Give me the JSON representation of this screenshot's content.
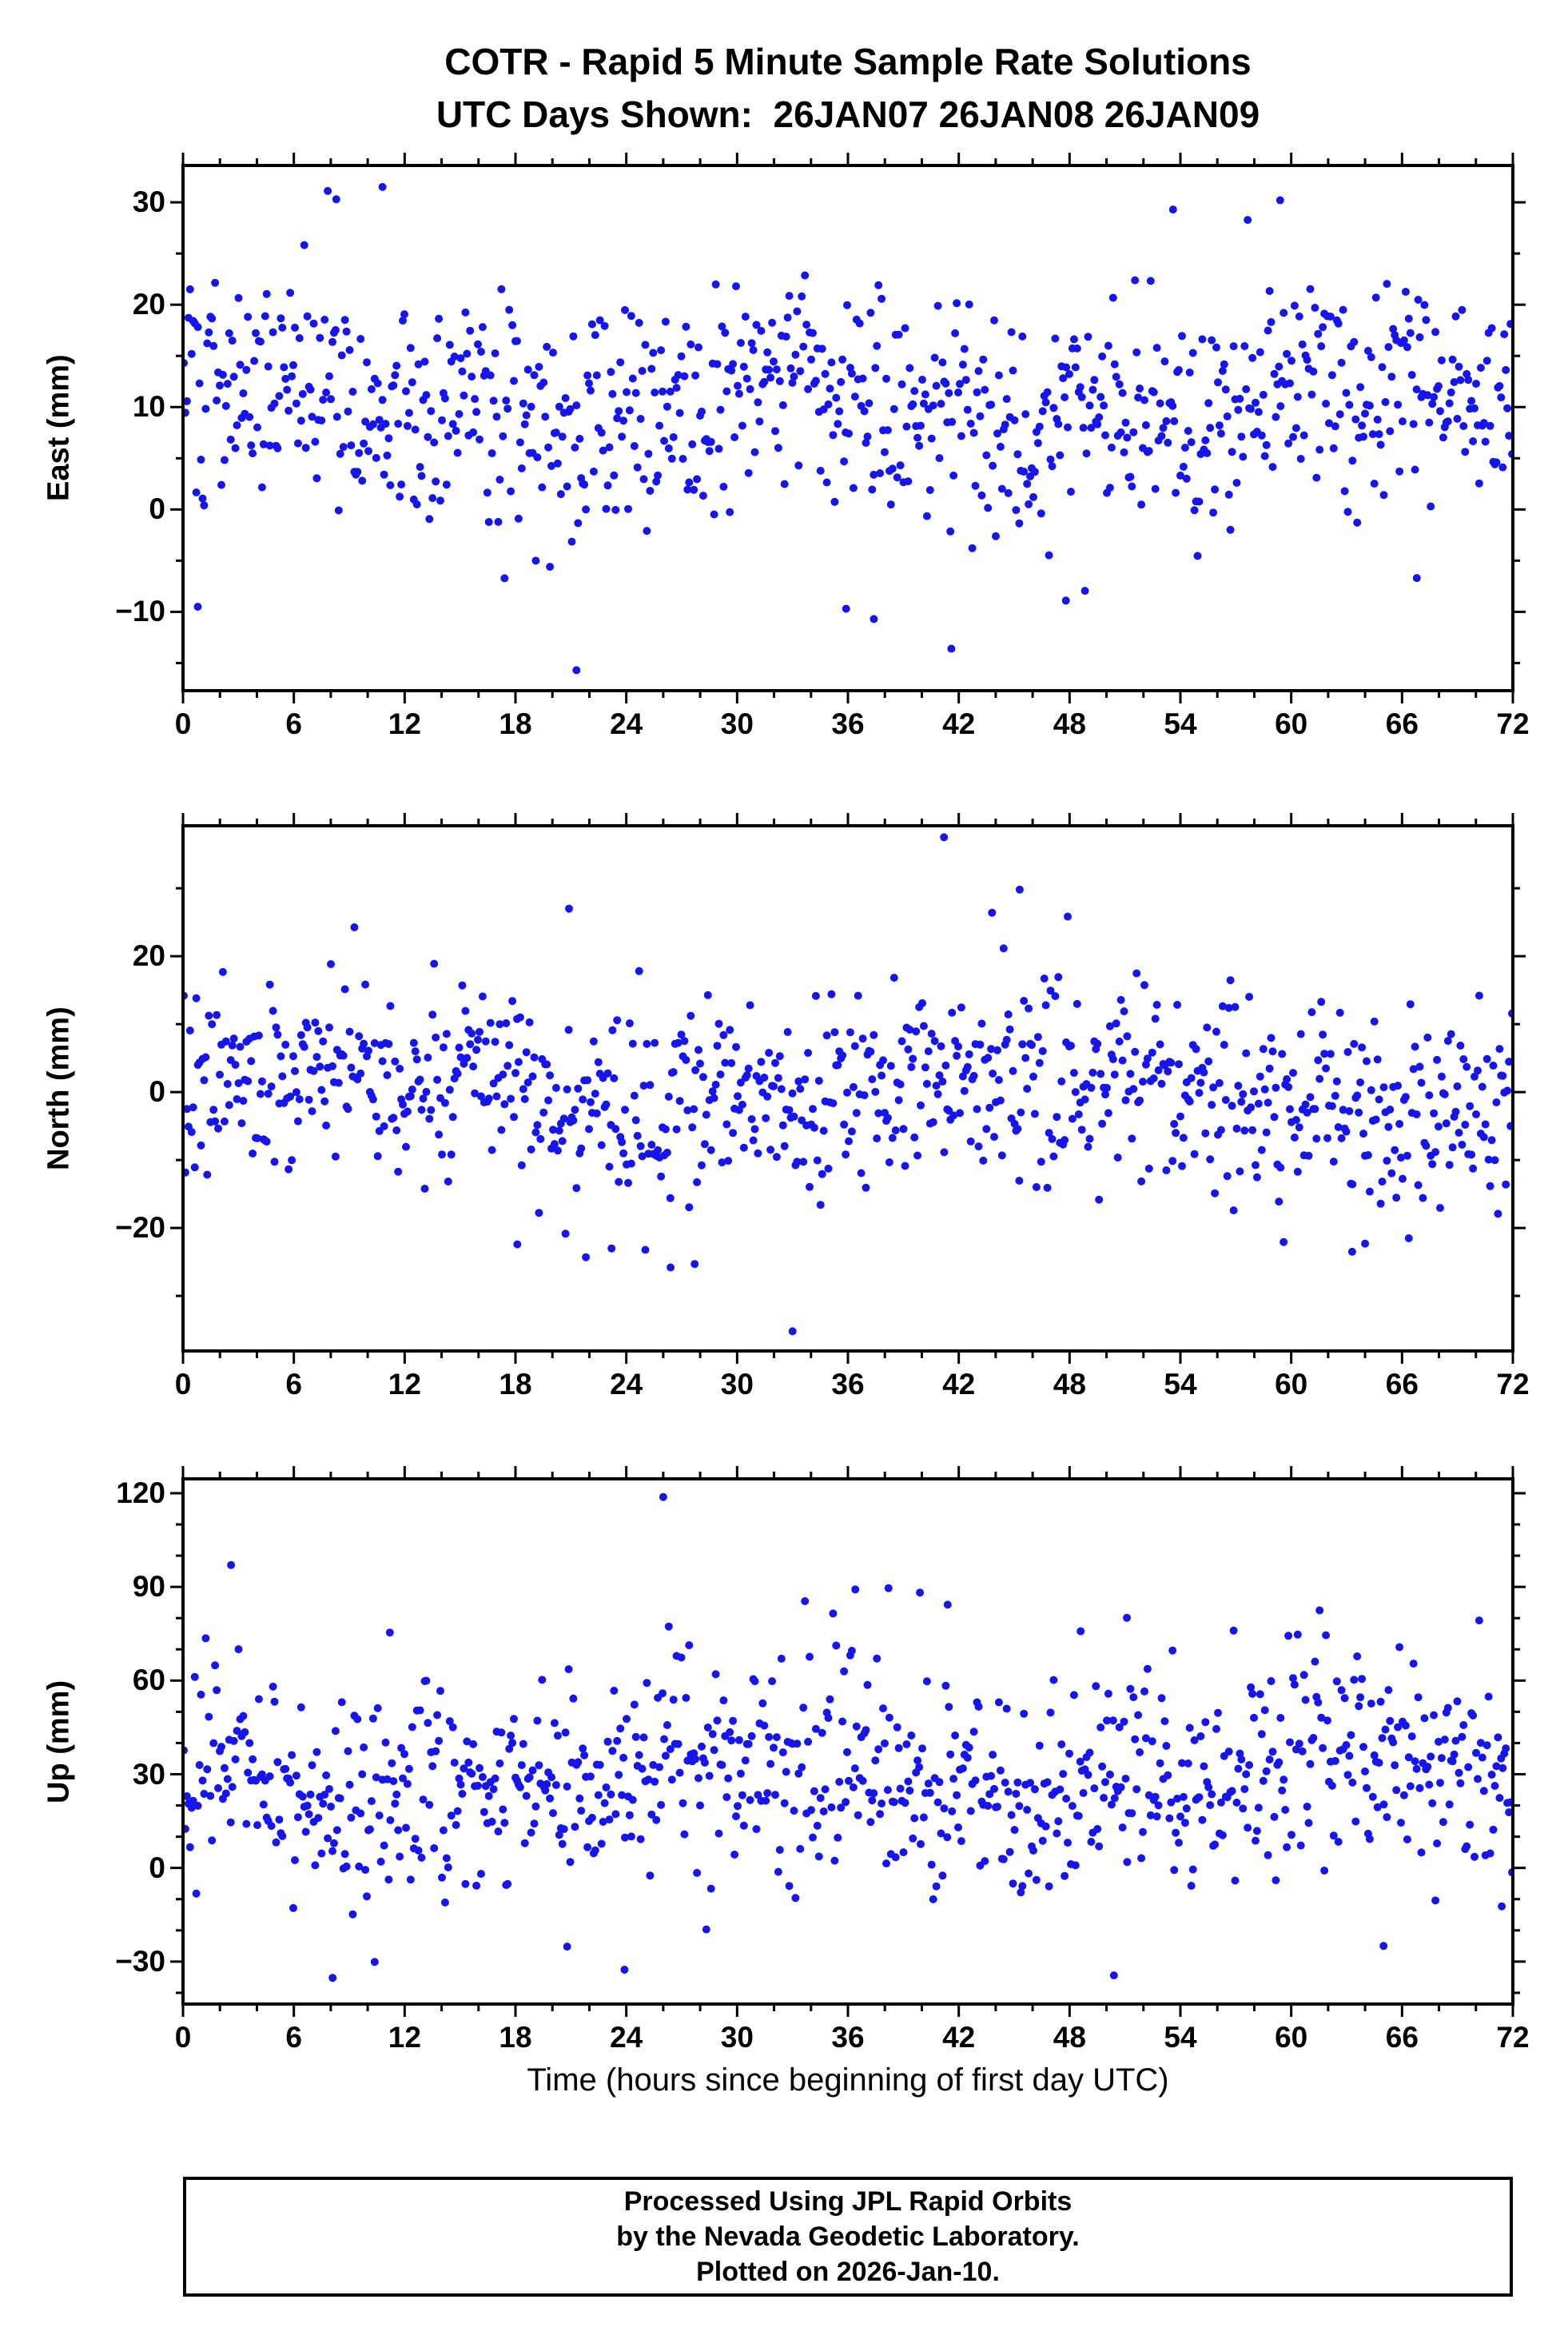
{
  "chart_data": {
    "type": "scatter",
    "title": "COTR - Rapid 5 Minute Sample Rate Solutions",
    "subtitle": "UTC Days Shown:  26JAN07 26JAN08 26JAN09",
    "station": "COTR",
    "days_shown": [
      "26JAN07",
      "26JAN08",
      "26JAN09"
    ],
    "sample_rate": "5 minute",
    "xlabel": "Time (hours since beginning of first day UTC)",
    "xlim": [
      0,
      72
    ],
    "xticks": [
      0,
      6,
      12,
      18,
      24,
      30,
      36,
      42,
      48,
      54,
      60,
      66,
      72
    ],
    "x_minor_step": 2,
    "grid": false,
    "legend": null,
    "marker": {
      "shape": "filled-circle",
      "color": "#1515ec",
      "radius_px": 5
    },
    "data_note": "Approximately 860 five-minute epochs per component over 72 hours; scatter reproduced procedurally from the per-panel statistics and explicit outliers below.",
    "panels": [
      {
        "name": "East",
        "ylabel": "East (mm)",
        "ylim": [
          -17.7,
          33.6
        ],
        "yticks": [
          30,
          20,
          10,
          0,
          -10
        ],
        "y_minor_step": 5,
        "n_points": 850,
        "seed": 101,
        "mean": 10.5,
        "std": 5.5,
        "wander": [
          {
            "amp": 2.2,
            "period": 30,
            "phase": 0.8
          },
          {
            "amp": 1.4,
            "period": 8.5,
            "phase": 2.1
          }
        ],
        "clip": [
          -15.8,
          32.0
        ],
        "outliers": [
          [
            21.3,
            -15.7
          ],
          [
            41.6,
            -13.6
          ],
          [
            0.8,
            -9.5
          ],
          [
            37.4,
            -10.7
          ],
          [
            10.8,
            31.5
          ],
          [
            8.3,
            30.3
          ],
          [
            59.4,
            30.2
          ],
          [
            53.6,
            29.3
          ],
          [
            47.8,
            -8.9
          ],
          [
            35.9,
            -9.7
          ],
          [
            66.8,
            -6.7
          ]
        ]
      },
      {
        "name": "North",
        "ylabel": "North (mm)",
        "ylim": [
          -38.1,
          39.2
        ],
        "yticks": [
          20,
          0,
          -20
        ],
        "y_minor_step": 10,
        "n_points": 850,
        "seed": 202,
        "mean": 0.3,
        "std": 7.0,
        "wander": [
          {
            "amp": 2.8,
            "period": 38,
            "phase": 0.5
          },
          {
            "amp": 1.8,
            "period": 11,
            "phase": 3.9
          }
        ],
        "clip": [
          -32.5,
          36.0
        ],
        "outliers": [
          [
            41.2,
            37.5
          ],
          [
            33.0,
            -35.2
          ],
          [
            20.9,
            27.0
          ],
          [
            45.3,
            29.8
          ],
          [
            43.8,
            26.4
          ],
          [
            26.4,
            -25.8
          ],
          [
            27.7,
            -25.3
          ],
          [
            63.3,
            -23.5
          ],
          [
            64.0,
            -22.3
          ],
          [
            18.1,
            -22.4
          ],
          [
            23.2,
            -23.0
          ]
        ]
      },
      {
        "name": "Up",
        "ylabel": "Up (mm)",
        "ylim": [
          -43.6,
          124.6
        ],
        "yticks": [
          120,
          90,
          60,
          30,
          0,
          -30
        ],
        "y_minor_step": 10,
        "n_points": 850,
        "seed": 303,
        "mean": 29,
        "std": 16,
        "wander": [
          {
            "amp": 6,
            "period": 34,
            "phase": 2.4
          },
          {
            "amp": 4,
            "period": 12,
            "phase": 0.7
          }
        ],
        "clip": [
          -37.5,
          86.0
        ],
        "outliers": [
          [
            26.0,
            118.8
          ],
          [
            2.6,
            97.0
          ],
          [
            36.4,
            89.2
          ],
          [
            38.2,
            89.6
          ],
          [
            39.9,
            88.2
          ],
          [
            41.4,
            84.3
          ],
          [
            48.6,
            75.8
          ],
          [
            51.1,
            80.1
          ],
          [
            11.2,
            75.4
          ],
          [
            8.1,
            -35.2
          ],
          [
            23.9,
            -32.6
          ],
          [
            50.4,
            -34.4
          ],
          [
            20.8,
            -25.2
          ],
          [
            65.0,
            -25.0
          ],
          [
            71.4,
            -12.3
          ]
        ]
      }
    ]
  },
  "footer": {
    "lines": [
      "Processed Using JPL Rapid Orbits",
      "by the Nevada Geodetic Laboratory.",
      "Plotted on 2026-Jan-10."
    ]
  }
}
